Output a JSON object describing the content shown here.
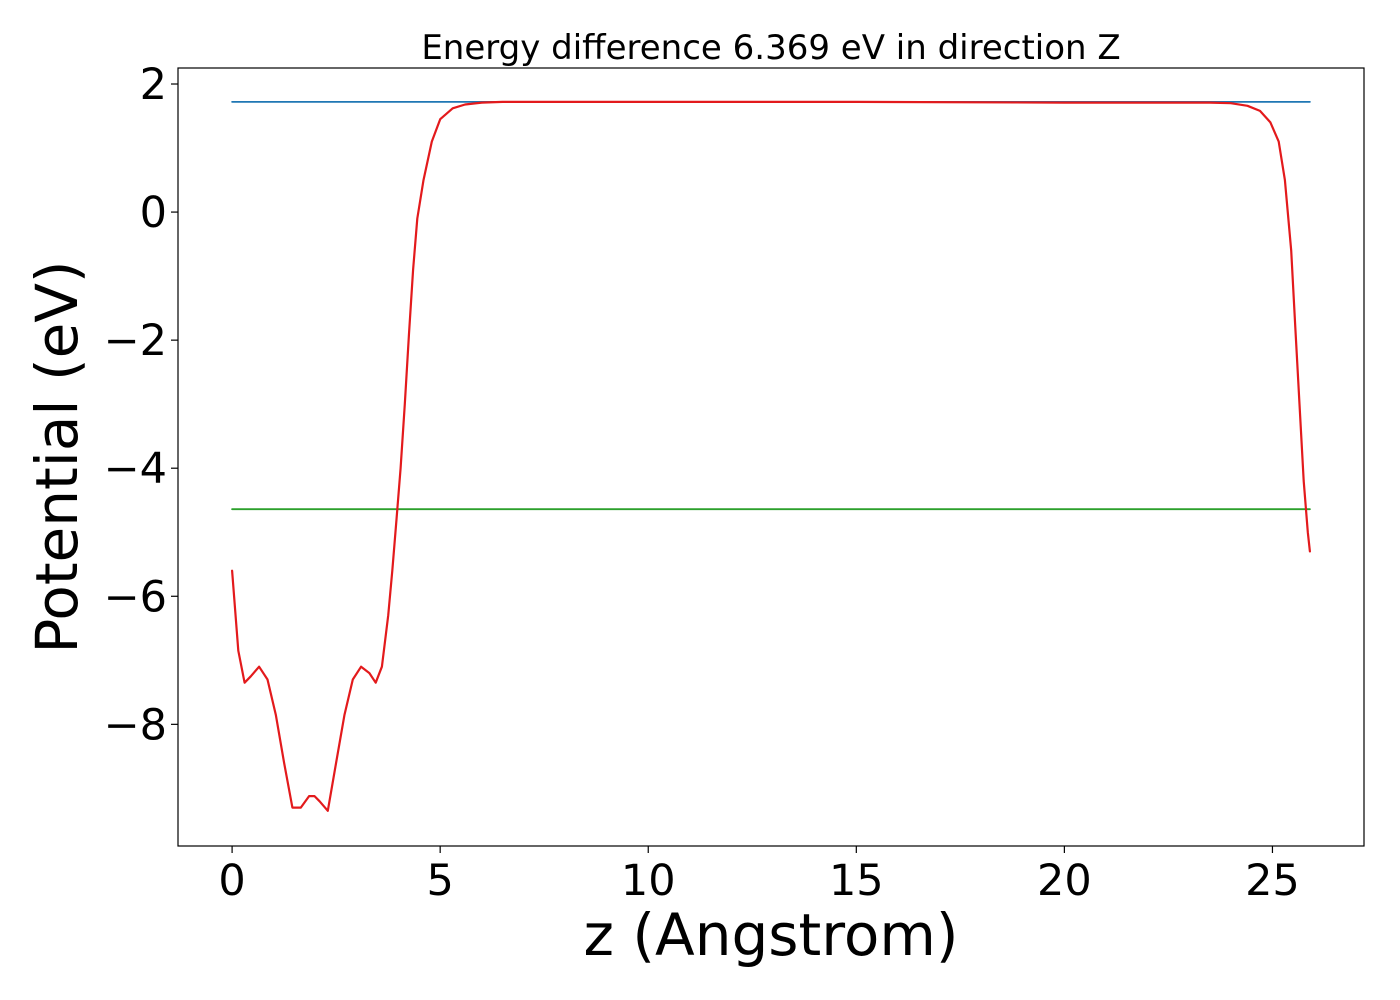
{
  "chart_data": {
    "type": "line",
    "title": "Energy difference 6.369 eV in direction Z",
    "xlabel": "z (Angstrom)",
    "ylabel": "Potential (eV)",
    "xlim": [
      -1.3,
      27.2
    ],
    "ylim": [
      -9.9,
      2.25
    ],
    "xticks": [
      0,
      5,
      10,
      15,
      20,
      25
    ],
    "yticks": [
      2,
      0,
      -2,
      -4,
      -6,
      -8
    ],
    "xtick_labels": [
      "0",
      "5",
      "10",
      "15",
      "20",
      "25"
    ],
    "ytick_labels": [
      "2",
      "0",
      "−2",
      "−4",
      "−6",
      "−8"
    ],
    "grid": false,
    "colors": {
      "potential": "#e31a1c",
      "vacuum_level": "#1f77b4",
      "reference_level": "#2ca02c"
    },
    "series": [
      {
        "key": "vacuum_level",
        "x": [
          0,
          25.9
        ],
        "y": [
          1.72,
          1.72
        ]
      },
      {
        "key": "reference_level",
        "x": [
          0,
          25.9
        ],
        "y": [
          -4.64,
          -4.64
        ]
      },
      {
        "key": "potential",
        "x": [
          0,
          0.15,
          0.3,
          0.45,
          0.65,
          0.85,
          1.05,
          1.25,
          1.45,
          1.65,
          1.85,
          1.98,
          2.1,
          2.3,
          2.5,
          2.7,
          2.9,
          3.1,
          3.3,
          3.45,
          3.6,
          3.75,
          3.85,
          3.95,
          4.05,
          4.15,
          4.25,
          4.35,
          4.45,
          4.6,
          4.8,
          5.0,
          5.3,
          5.6,
          6.0,
          6.5,
          7.0,
          10.0,
          15.0,
          20.0,
          23.5,
          24.0,
          24.4,
          24.7,
          24.95,
          25.15,
          25.3,
          25.45,
          25.55,
          25.65,
          25.75,
          25.85,
          25.9
        ],
        "y": [
          -5.6,
          -6.85,
          -7.35,
          -7.25,
          -7.1,
          -7.3,
          -7.85,
          -8.6,
          -9.3,
          -9.3,
          -9.12,
          -9.12,
          -9.2,
          -9.35,
          -8.6,
          -7.85,
          -7.3,
          -7.1,
          -7.2,
          -7.35,
          -7.1,
          -6.3,
          -5.6,
          -4.8,
          -4.0,
          -3.0,
          -1.9,
          -0.9,
          -0.1,
          0.5,
          1.1,
          1.45,
          1.62,
          1.68,
          1.71,
          1.72,
          1.72,
          1.72,
          1.72,
          1.71,
          1.71,
          1.7,
          1.66,
          1.58,
          1.4,
          1.1,
          0.5,
          -0.6,
          -1.8,
          -3.0,
          -4.2,
          -5.0,
          -5.3
        ]
      }
    ]
  }
}
